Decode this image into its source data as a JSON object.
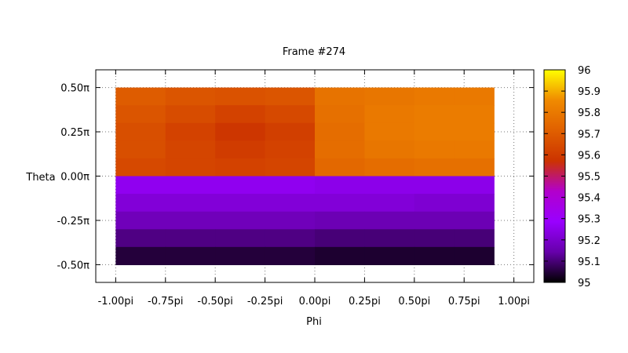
{
  "chart_data": {
    "type": "heatmap",
    "title": "Frame #274",
    "xlabel": "Phi",
    "ylabel": "Theta",
    "xlim": [
      -1.1,
      1.1
    ],
    "ylim": [
      -0.6,
      0.6
    ],
    "x_ticks": [
      {
        "value": -1.0,
        "label": "-1.00pi"
      },
      {
        "value": -0.75,
        "label": "-0.75pi"
      },
      {
        "value": -0.5,
        "label": "-0.50pi"
      },
      {
        "value": -0.25,
        "label": "-0.25pi"
      },
      {
        "value": 0.0,
        "label": "0.00pi"
      },
      {
        "value": 0.25,
        "label": "0.25pi"
      },
      {
        "value": 0.5,
        "label": "0.50pi"
      },
      {
        "value": 0.75,
        "label": "0.75pi"
      },
      {
        "value": 1.0,
        "label": "1.00pi"
      }
    ],
    "y_ticks": [
      {
        "value": 0.5,
        "label": "0.50π"
      },
      {
        "value": 0.25,
        "label": "0.25π"
      },
      {
        "value": 0.0,
        "label": "0.00π"
      },
      {
        "value": -0.25,
        "label": "-0.25π"
      },
      {
        "value": -0.5,
        "label": "-0.50π"
      }
    ],
    "grid": true,
    "colorbar": {
      "min": 95,
      "max": 96,
      "ticks": [
        95,
        95.1,
        95.2,
        95.3,
        95.4,
        95.5,
        95.6,
        95.7,
        95.8,
        95.9,
        96
      ],
      "tick_labels": [
        "95",
        "95.1",
        "95.2",
        "95.3",
        "95.4",
        "95.5",
        "95.6",
        "95.7",
        "95.8",
        "95.9",
        "96"
      ],
      "palette": [
        "#000000",
        "#6600aa",
        "#9900ff",
        "#b200cc",
        "#cc3300",
        "#e06000",
        "#f08a00",
        "#ffff00"
      ]
    },
    "grid_x": [
      -0.875,
      -0.625,
      -0.375,
      -0.125,
      0.125,
      0.375,
      0.625,
      0.8
    ],
    "grid_y": [
      0.45,
      0.35,
      0.25,
      0.15,
      0.05,
      -0.05,
      -0.15,
      -0.25,
      -0.35,
      -0.45
    ],
    "z": [
      [
        95.7,
        95.68,
        95.67,
        95.68,
        95.78,
        95.79,
        95.8,
        95.8
      ],
      [
        95.68,
        95.65,
        95.62,
        95.64,
        95.77,
        95.8,
        95.81,
        95.81
      ],
      [
        95.66,
        95.62,
        95.58,
        95.61,
        95.76,
        95.8,
        95.81,
        95.81
      ],
      [
        95.66,
        95.63,
        95.6,
        95.62,
        95.76,
        95.79,
        95.8,
        95.8
      ],
      [
        95.64,
        95.63,
        95.62,
        95.63,
        95.74,
        95.76,
        95.77,
        95.77
      ],
      [
        95.26,
        95.26,
        95.26,
        95.26,
        95.25,
        95.25,
        95.25,
        95.25
      ],
      [
        95.22,
        95.22,
        95.22,
        95.22,
        95.22,
        95.22,
        95.21,
        95.21
      ],
      [
        95.17,
        95.17,
        95.17,
        95.17,
        95.16,
        95.16,
        95.16,
        95.16
      ],
      [
        95.11,
        95.11,
        95.11,
        95.11,
        95.1,
        95.1,
        95.1,
        95.1
      ],
      [
        95.05,
        95.05,
        95.05,
        95.05,
        95.04,
        95.04,
        95.04,
        95.04
      ]
    ]
  }
}
